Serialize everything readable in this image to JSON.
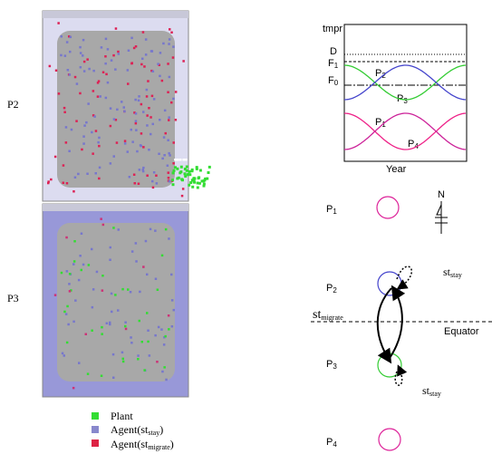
{
  "left": {
    "labels": [
      "P2",
      "P3"
    ]
  },
  "legend": [
    {
      "label": "Plant"
    },
    {
      "label": "Agent(st",
      "sub": "stay",
      "end": ")"
    },
    {
      "label": "Agent(st",
      "sub": "migrate",
      "end": ")"
    }
  ],
  "graph": {
    "ylabel": "tmpr",
    "xlabel": "Year",
    "levels": [
      {
        "base": "D"
      },
      {
        "base": "F",
        "sub": "1"
      },
      {
        "base": "F",
        "sub": "0"
      }
    ],
    "curves": [
      {
        "base": "P",
        "sub": "2"
      },
      {
        "base": "P",
        "sub": "3"
      },
      {
        "base": "P",
        "sub": "1"
      },
      {
        "base": "P",
        "sub": "4"
      }
    ]
  },
  "diagram": {
    "positions": [
      {
        "base": "P",
        "sub": "1"
      },
      {
        "base": "P",
        "sub": "2"
      },
      {
        "base": "P",
        "sub": "3"
      },
      {
        "base": "P",
        "sub": "4"
      }
    ],
    "north": "N",
    "stay_top": {
      "base": "st",
      "sub": "stay"
    },
    "migrate": {
      "base": "st",
      "sub": "migrate"
    },
    "equator": "Equator",
    "stay_bottom": {
      "base": "st",
      "sub": "stay"
    }
  }
}
